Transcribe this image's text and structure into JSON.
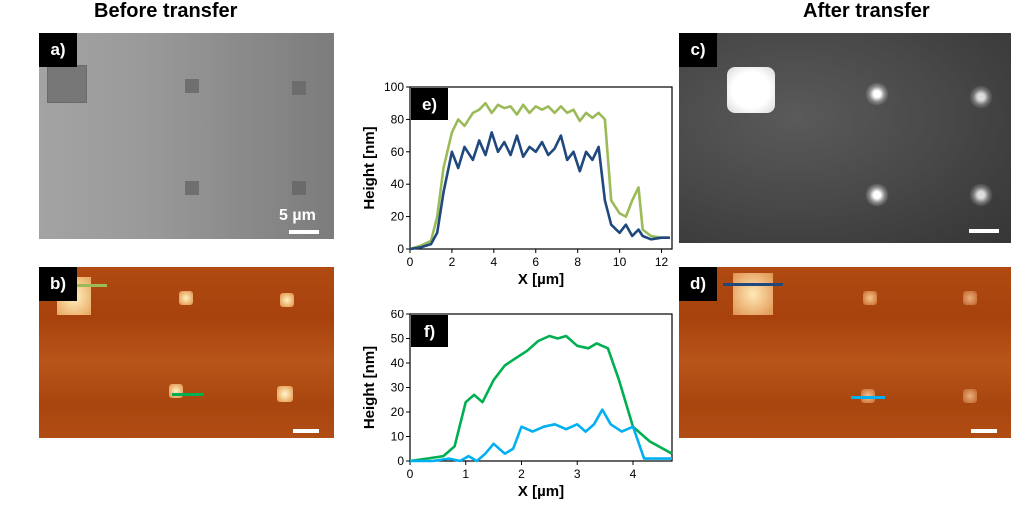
{
  "headings": {
    "before": "Before transfer",
    "after": "After transfer"
  },
  "panels": {
    "a": {
      "label": "a)",
      "scale_label": "5 µm"
    },
    "b": {
      "label": "b)"
    },
    "c": {
      "label": "c)"
    },
    "d": {
      "label": "d)"
    }
  },
  "colors": {
    "light_green": "#9bbb59",
    "navy": "#1f497d",
    "green": "#00b050",
    "cyan": "#00b0f0"
  },
  "chart_data": [
    {
      "type": "line",
      "panel_label": "e)",
      "xlabel": "X [µm]",
      "ylabel": "Height [nm]",
      "xlim": [
        0,
        12.5
      ],
      "ylim": [
        0,
        100
      ],
      "xticks": [
        0,
        2,
        4,
        6,
        8,
        10,
        12
      ],
      "yticks": [
        0,
        20,
        40,
        60,
        80,
        100
      ],
      "series": [
        {
          "color": "#9bbb59",
          "x": [
            0,
            0.5,
            1.0,
            1.3,
            1.6,
            2.0,
            2.3,
            2.6,
            3.0,
            3.3,
            3.6,
            3.9,
            4.2,
            4.5,
            4.8,
            5.1,
            5.4,
            5.7,
            6.0,
            6.3,
            6.6,
            6.9,
            7.2,
            7.5,
            7.8,
            8.1,
            8.4,
            8.7,
            9.0,
            9.3,
            9.6,
            10.0,
            10.3,
            10.6,
            10.9,
            11.1,
            11.5,
            12.0,
            12.4
          ],
          "y": [
            0,
            2,
            5,
            20,
            50,
            72,
            80,
            76,
            84,
            86,
            90,
            84,
            89,
            87,
            88,
            83,
            89,
            84,
            88,
            86,
            88,
            84,
            88,
            84,
            86,
            79,
            84,
            81,
            84,
            80,
            30,
            22,
            20,
            30,
            38,
            12,
            8,
            7,
            7
          ]
        },
        {
          "color": "#1f497d",
          "x": [
            0,
            0.5,
            1.0,
            1.3,
            1.6,
            2.0,
            2.3,
            2.6,
            3.0,
            3.3,
            3.6,
            3.9,
            4.2,
            4.5,
            4.8,
            5.1,
            5.4,
            5.7,
            6.0,
            6.3,
            6.6,
            6.9,
            7.2,
            7.5,
            7.8,
            8.1,
            8.4,
            8.7,
            9.0,
            9.3,
            9.6,
            10.0,
            10.3,
            10.6,
            10.9,
            11.1,
            11.5,
            12.0,
            12.4
          ],
          "y": [
            0,
            1,
            3,
            10,
            35,
            60,
            50,
            63,
            55,
            67,
            58,
            72,
            60,
            66,
            58,
            70,
            57,
            63,
            60,
            66,
            58,
            62,
            70,
            55,
            60,
            48,
            60,
            55,
            63,
            30,
            15,
            10,
            15,
            8,
            12,
            8,
            6,
            7,
            7
          ]
        }
      ]
    },
    {
      "type": "line",
      "panel_label": "f)",
      "xlabel": "X [µm]",
      "ylabel": "Height [nm]",
      "xlim": [
        0,
        4.7
      ],
      "ylim": [
        0,
        60
      ],
      "xticks": [
        0,
        1,
        2,
        3,
        4
      ],
      "yticks": [
        0,
        10,
        20,
        30,
        40,
        50,
        60
      ],
      "series": [
        {
          "color": "#00b050",
          "x": [
            0,
            0.3,
            0.6,
            0.8,
            1.0,
            1.15,
            1.3,
            1.5,
            1.7,
            1.9,
            2.1,
            2.3,
            2.5,
            2.65,
            2.8,
            3.0,
            3.2,
            3.35,
            3.55,
            3.75,
            4.0,
            4.3,
            4.7
          ],
          "y": [
            0,
            1,
            2,
            6,
            24,
            27,
            24,
            33,
            39,
            42,
            45,
            49,
            51,
            50,
            51,
            47,
            46,
            48,
            46,
            33,
            14,
            8,
            3
          ]
        },
        {
          "color": "#00b0f0",
          "x": [
            0,
            0.4,
            0.7,
            0.9,
            1.05,
            1.2,
            1.35,
            1.5,
            1.7,
            1.85,
            2.0,
            2.2,
            2.4,
            2.6,
            2.8,
            3.0,
            3.15,
            3.3,
            3.45,
            3.6,
            3.8,
            4.0,
            4.2,
            4.4,
            4.7
          ],
          "y": [
            0,
            0,
            1,
            0,
            2,
            0,
            3,
            7,
            3,
            5,
            14,
            12,
            14,
            15,
            13,
            15,
            12,
            15,
            21,
            15,
            12,
            14,
            1,
            1,
            1
          ]
        }
      ]
    }
  ]
}
